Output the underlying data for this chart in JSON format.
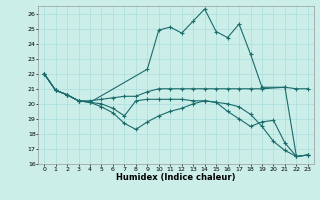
{
  "xlabel": "Humidex (Indice chaleur)",
  "background_color": "#cceee8",
  "grid_color": "#aadddd",
  "line_color": "#1a6b6b",
  "xlim": [
    -0.5,
    23.5
  ],
  "ylim": [
    16,
    26.5
  ],
  "yticks": [
    16,
    17,
    18,
    19,
    20,
    21,
    22,
    23,
    24,
    25,
    26
  ],
  "xticks": [
    0,
    1,
    2,
    3,
    4,
    5,
    6,
    7,
    8,
    9,
    10,
    11,
    12,
    13,
    14,
    15,
    16,
    17,
    18,
    19,
    20,
    21,
    22,
    23
  ],
  "series": [
    {
      "x": [
        0,
        1,
        2,
        3,
        4,
        9,
        10,
        11,
        12,
        13,
        14,
        15,
        16,
        17,
        18,
        19,
        21,
        22,
        23
      ],
      "y": [
        22.0,
        20.9,
        20.6,
        20.2,
        20.1,
        22.3,
        24.9,
        25.1,
        24.7,
        25.5,
        26.3,
        24.8,
        24.4,
        25.3,
        23.3,
        21.1,
        21.1,
        16.5,
        16.6
      ]
    },
    {
      "x": [
        0,
        1,
        2,
        3,
        4,
        5,
        6,
        7,
        8,
        9,
        10,
        11,
        12,
        13,
        14,
        15,
        16,
        17,
        18,
        19,
        21,
        22,
        23
      ],
      "y": [
        22.0,
        20.9,
        20.6,
        20.2,
        20.2,
        20.3,
        20.4,
        20.5,
        20.5,
        20.8,
        21.0,
        21.0,
        21.0,
        21.0,
        21.0,
        21.0,
        21.0,
        21.0,
        21.0,
        21.0,
        21.1,
        21.0,
        21.0
      ]
    },
    {
      "x": [
        0,
        1,
        2,
        3,
        4,
        5,
        6,
        7,
        8,
        9,
        10,
        11,
        12,
        13,
        14,
        15,
        16,
        17,
        18,
        19,
        20,
        21,
        22,
        23
      ],
      "y": [
        22.0,
        20.9,
        20.6,
        20.2,
        20.1,
        20.0,
        19.7,
        19.2,
        20.2,
        20.3,
        20.3,
        20.3,
        20.3,
        20.2,
        20.2,
        20.1,
        19.5,
        19.0,
        18.5,
        18.8,
        18.9,
        17.4,
        16.5,
        16.6
      ]
    },
    {
      "x": [
        0,
        1,
        2,
        3,
        4,
        5,
        6,
        7,
        8,
        9,
        10,
        11,
        12,
        13,
        14,
        15,
        16,
        17,
        18,
        19,
        20,
        21,
        22,
        23
      ],
      "y": [
        22.0,
        20.9,
        20.6,
        20.2,
        20.1,
        19.8,
        19.4,
        18.7,
        18.3,
        18.8,
        19.2,
        19.5,
        19.7,
        20.0,
        20.2,
        20.1,
        20.0,
        19.8,
        19.3,
        18.5,
        17.5,
        16.9,
        16.5,
        16.6
      ]
    }
  ]
}
